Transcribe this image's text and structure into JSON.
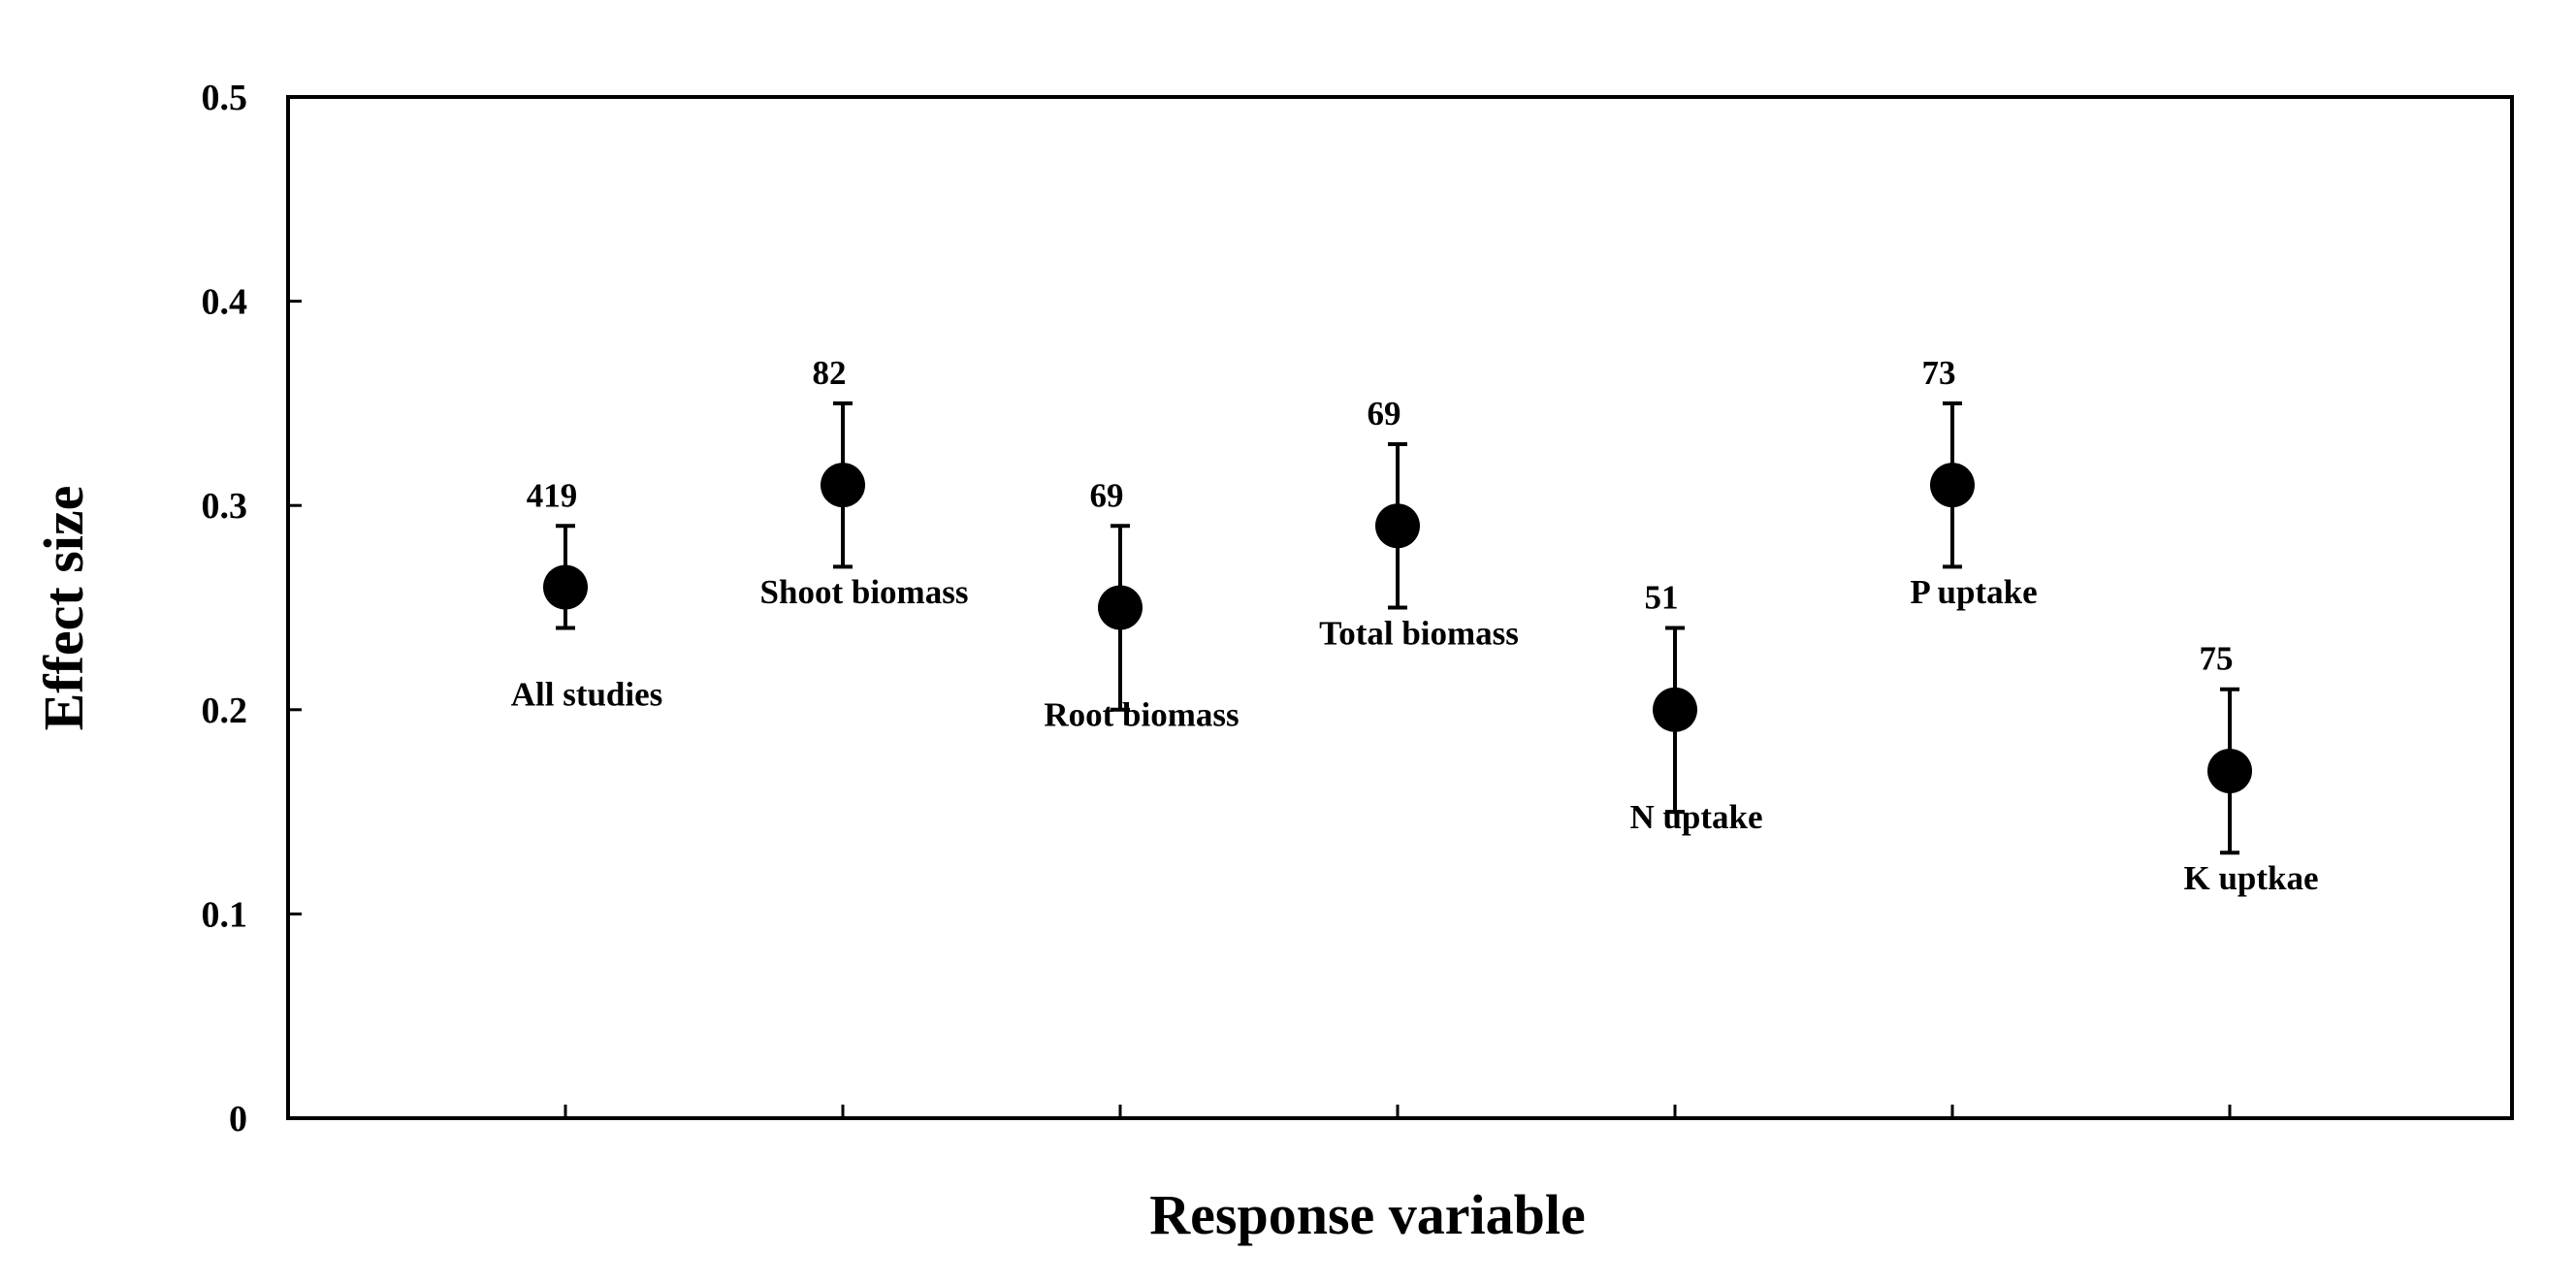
{
  "chart_data": {
    "type": "scatter",
    "title": "",
    "xlabel": "Response variable",
    "ylabel": "Effect size",
    "ylim": [
      0,
      0.5
    ],
    "yticks": [
      "0",
      "0.1",
      "0.2",
      "0.3",
      "0.4",
      "0.5"
    ],
    "grid": false,
    "legend": "none",
    "marker_color": "#000000",
    "points": [
      {
        "category": "All studies",
        "value": 0.26,
        "ci_low": 0.24,
        "ci_high": 0.29,
        "n": "419",
        "label_pos": "below"
      },
      {
        "category": "Shoot biomass",
        "value": 0.31,
        "ci_low": 0.27,
        "ci_high": 0.35,
        "n": "82",
        "label_pos": "below"
      },
      {
        "category": "Root biomass",
        "value": 0.25,
        "ci_low": 0.2,
        "ci_high": 0.29,
        "n": "69",
        "label_pos": "below"
      },
      {
        "category": "Total biomass",
        "value": 0.29,
        "ci_low": 0.25,
        "ci_high": 0.33,
        "n": "69",
        "label_pos": "below"
      },
      {
        "category": "N uptake",
        "value": 0.2,
        "ci_low": 0.15,
        "ci_high": 0.24,
        "n": "51",
        "label_pos": "below"
      },
      {
        "category": "P uptake",
        "value": 0.31,
        "ci_low": 0.27,
        "ci_high": 0.35,
        "n": "73",
        "label_pos": "below"
      },
      {
        "category": "K uptkae",
        "value": 0.17,
        "ci_low": 0.13,
        "ci_high": 0.21,
        "n": "75",
        "label_pos": "below"
      }
    ]
  }
}
